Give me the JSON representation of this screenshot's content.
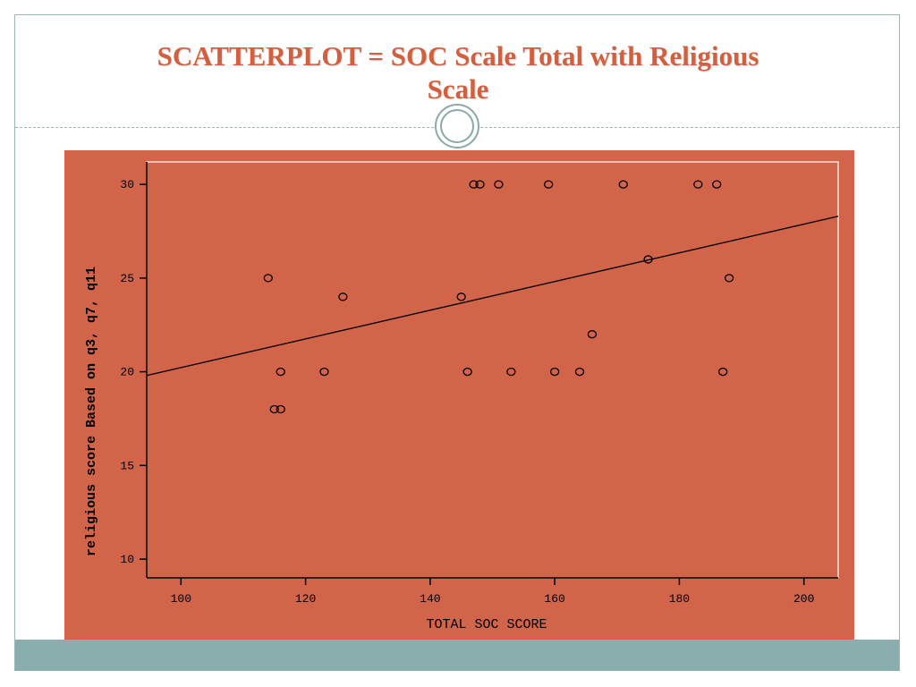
{
  "slide": {
    "title_line1": "SCATTERPLOT = SOC Scale Total with Religious",
    "title_line2": "Scale",
    "colors": {
      "title": "#d2603f",
      "panel": "#d2644a",
      "accent": "#8aadad",
      "plot_area": "#d2644a"
    }
  },
  "chart_data": {
    "type": "scatter",
    "xlabel": "TOTAL SOC SCORE",
    "ylabel": "religious score Based on q3, q7, q11",
    "xlim": [
      94.5,
      205.5
    ],
    "ylim": [
      9,
      31.2
    ],
    "xticks": [
      100,
      120,
      140,
      160,
      180,
      200
    ],
    "yticks": [
      10,
      15,
      20,
      25,
      30
    ],
    "x_tick_labels": [
      "100",
      "120",
      "140",
      "160",
      "180",
      "200"
    ],
    "y_tick_labels": [
      "10",
      "15",
      "20",
      "25",
      "30"
    ],
    "grid": false,
    "points": [
      {
        "x": 114,
        "y": 25
      },
      {
        "x": 115,
        "y": 18
      },
      {
        "x": 116,
        "y": 18
      },
      {
        "x": 116,
        "y": 20
      },
      {
        "x": 123,
        "y": 20
      },
      {
        "x": 126,
        "y": 24
      },
      {
        "x": 145,
        "y": 24
      },
      {
        "x": 146,
        "y": 20
      },
      {
        "x": 147,
        "y": 30
      },
      {
        "x": 148,
        "y": 30
      },
      {
        "x": 151,
        "y": 30
      },
      {
        "x": 153,
        "y": 20
      },
      {
        "x": 159,
        "y": 30
      },
      {
        "x": 160,
        "y": 20
      },
      {
        "x": 164,
        "y": 20
      },
      {
        "x": 166,
        "y": 22
      },
      {
        "x": 171,
        "y": 30
      },
      {
        "x": 175,
        "y": 26
      },
      {
        "x": 183,
        "y": 30
      },
      {
        "x": 186,
        "y": 30
      },
      {
        "x": 187,
        "y": 20
      },
      {
        "x": 188,
        "y": 25
      }
    ],
    "fit_line": {
      "x": [
        94.5,
        205.5
      ],
      "y": [
        19.8,
        28.3
      ]
    }
  }
}
